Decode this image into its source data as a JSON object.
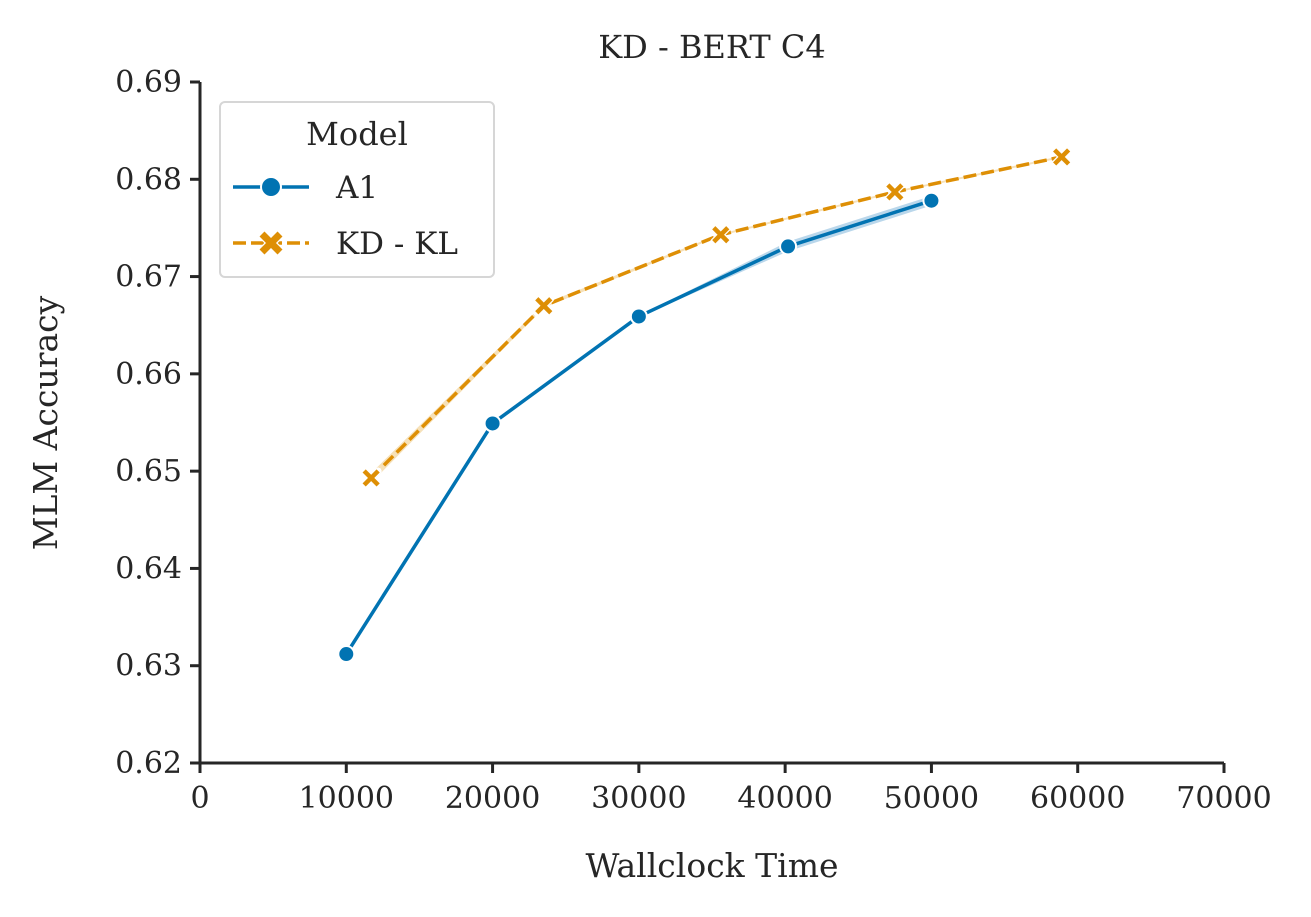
{
  "chart_data": {
    "type": "line",
    "title": "KD - BERT C4",
    "xlabel": "Wallclock Time",
    "ylabel": "MLM Accuracy",
    "xlim": [
      0,
      70000
    ],
    "ylim": [
      0.62,
      0.69
    ],
    "x_ticks": [
      0,
      10000,
      20000,
      30000,
      40000,
      50000,
      60000,
      70000
    ],
    "x_tick_labels": [
      "0",
      "10000",
      "20000",
      "30000",
      "40000",
      "50000",
      "60000",
      "70000"
    ],
    "y_ticks": [
      0.62,
      0.63,
      0.64,
      0.65,
      0.66,
      0.67,
      0.68,
      0.69
    ],
    "y_tick_labels": [
      "0.62",
      "0.63",
      "0.64",
      "0.65",
      "0.66",
      "0.67",
      "0.68",
      "0.69"
    ],
    "grid": false,
    "legend": {
      "title": "Model",
      "placement": "top-left"
    },
    "series": [
      {
        "name": "A1",
        "color": "#0173b2",
        "band_color": "#a9cde6",
        "marker": "circle",
        "linestyle": "solid",
        "x": [
          10000,
          20000,
          30000,
          40200,
          50000
        ],
        "y": [
          0.6312,
          0.6549,
          0.6659,
          0.6731,
          0.6778
        ],
        "ci_low": [
          0.6311,
          0.6548,
          0.6658,
          0.6726,
          0.6773
        ],
        "ci_high": [
          0.6313,
          0.655,
          0.666,
          0.6736,
          0.6783
        ]
      },
      {
        "name": "KD - KL",
        "color": "#de8f05",
        "band_color": "#f4d9a8",
        "marker": "x",
        "linestyle": "dashed",
        "x": [
          11700,
          23500,
          35600,
          47500,
          58900
        ],
        "y": [
          0.6493,
          0.667,
          0.6743,
          0.6787,
          0.6823
        ],
        "ci_low": [
          0.6488,
          0.6668,
          0.6742,
          0.6786,
          0.6822
        ],
        "ci_high": [
          0.6498,
          0.6672,
          0.6744,
          0.6788,
          0.6824
        ]
      }
    ]
  }
}
